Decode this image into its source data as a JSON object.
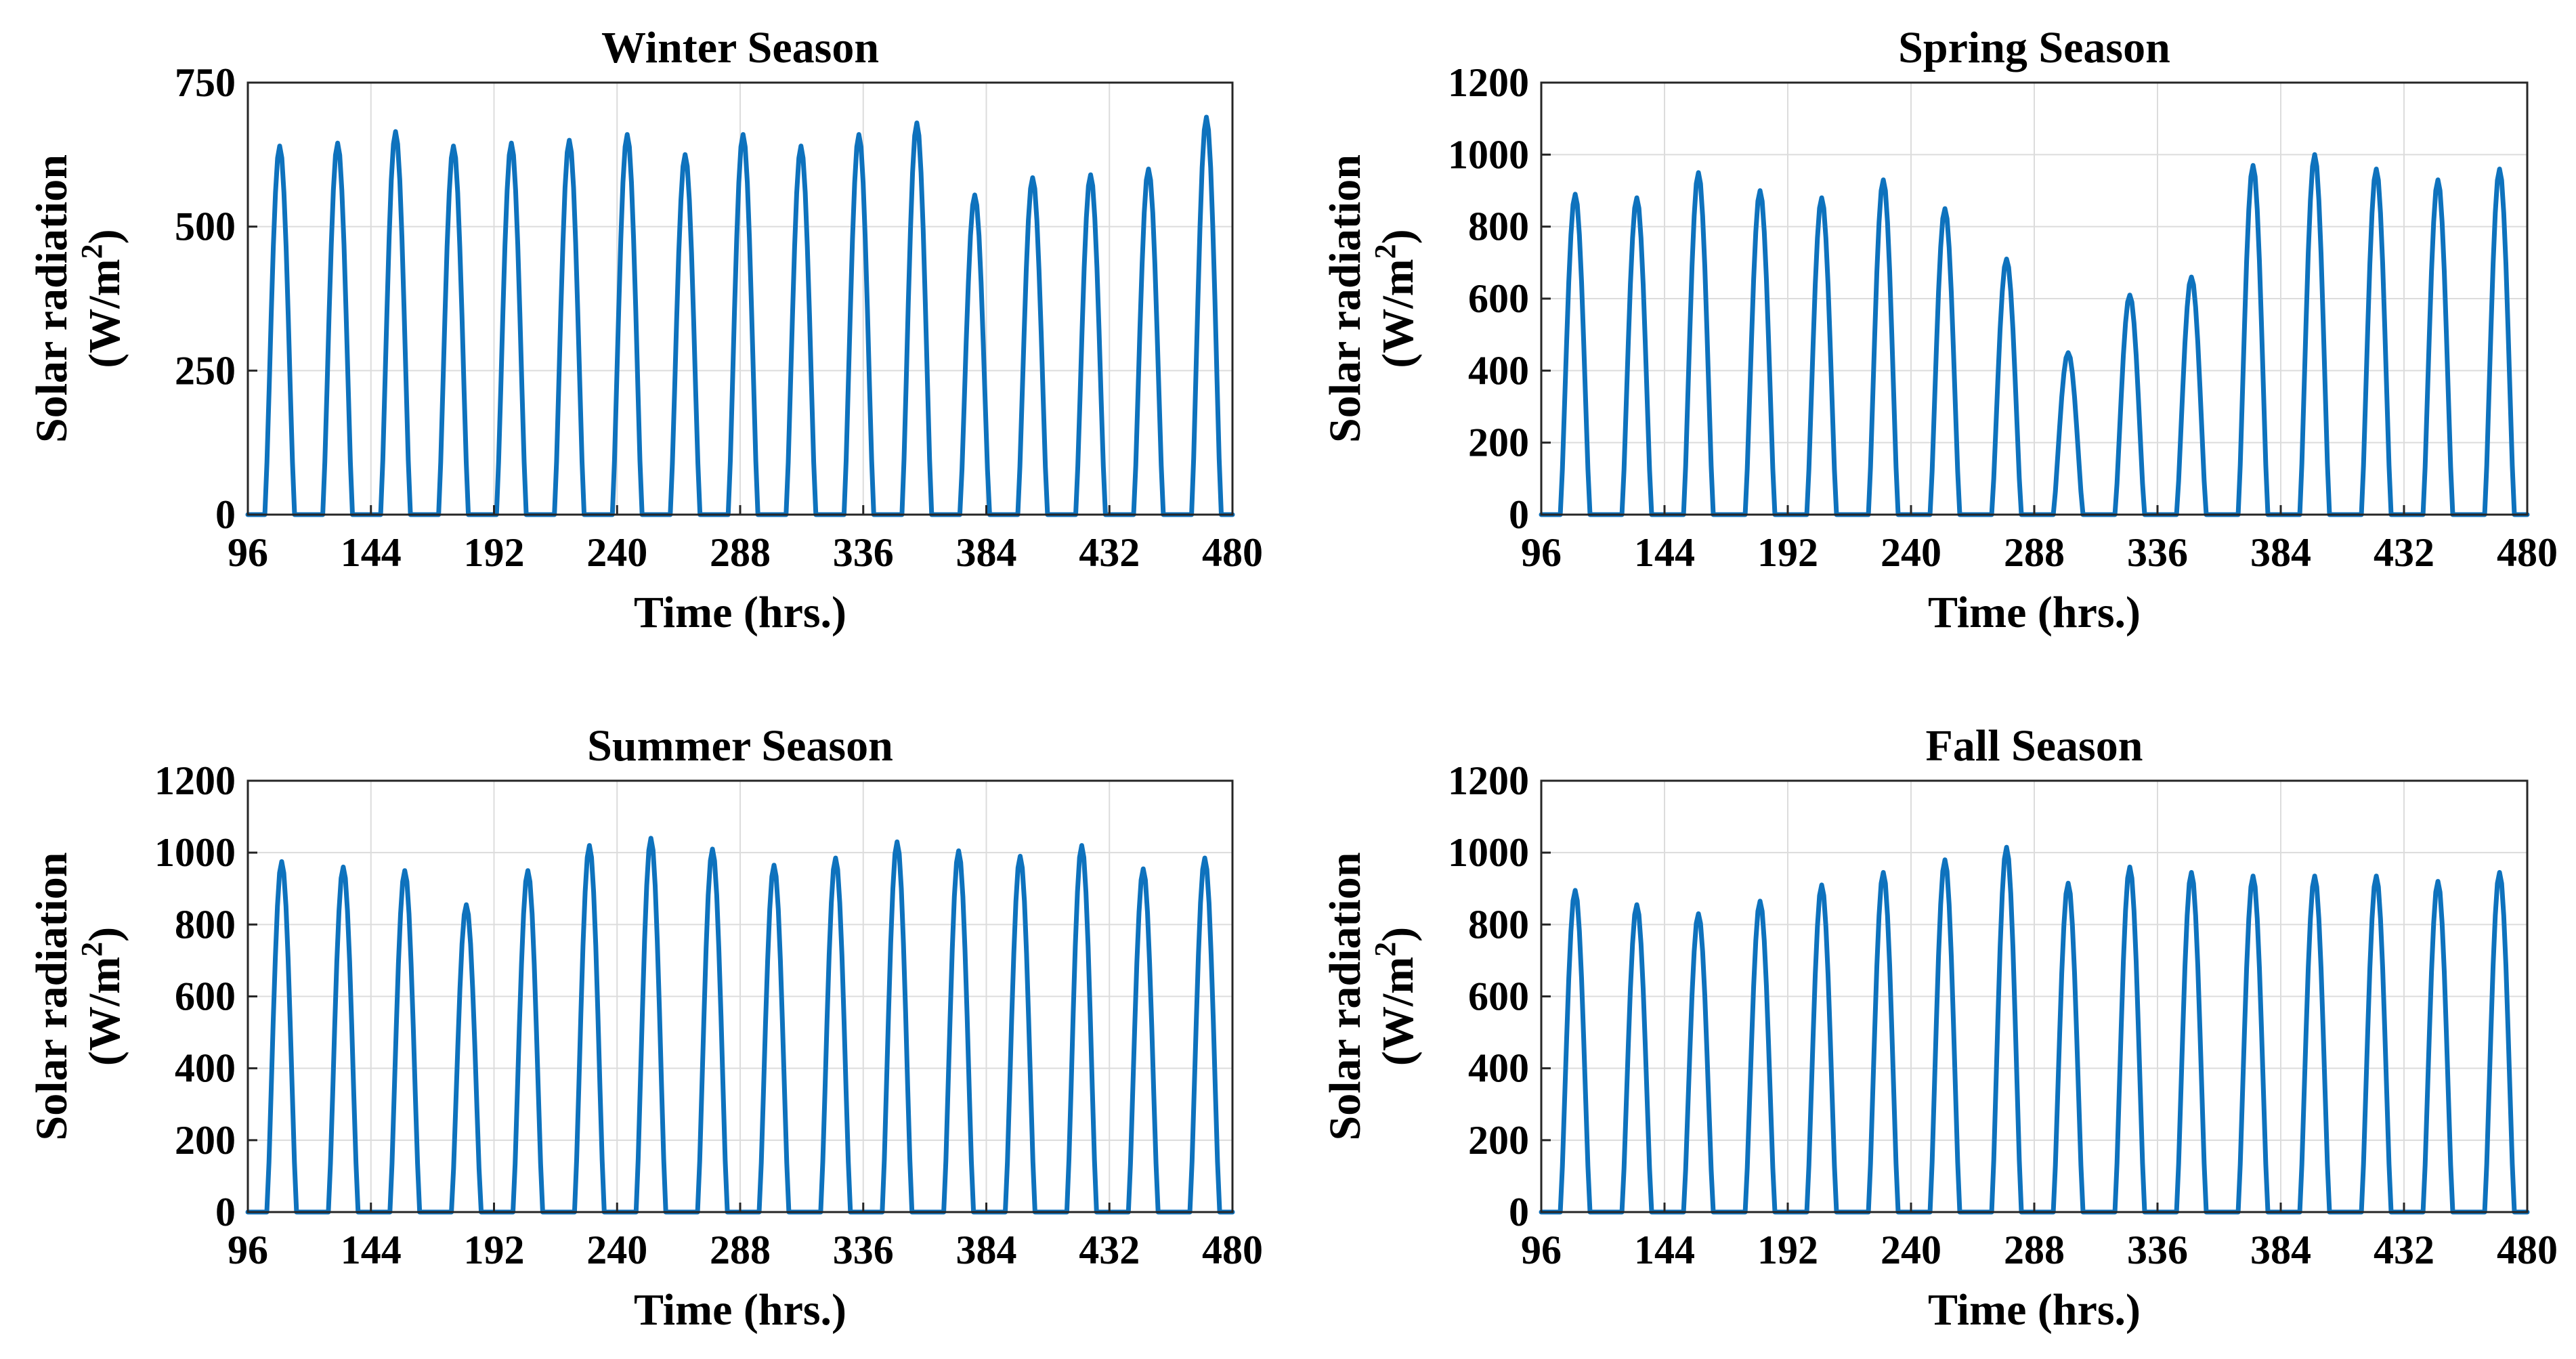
{
  "chart_data": [
    {
      "type": "line",
      "title": "Winter Season",
      "xlabel": "Time (hrs.)",
      "ylabel_line1": "Solar radiation",
      "ylabel_line2_prefix": "(W/m",
      "ylabel_sup": "2",
      "ylabel_line2_suffix": ")",
      "xlim": [
        96,
        480
      ],
      "ylim": [
        0,
        750
      ],
      "xticks": [
        96,
        144,
        192,
        240,
        288,
        336,
        384,
        432,
        480
      ],
      "yticks": [
        0,
        250,
        500,
        750
      ],
      "xtick_labels": [
        "96",
        "144",
        "192",
        "240",
        "288",
        "336",
        "384",
        "432",
        "480"
      ],
      "ytick_labels": [
        "0",
        "250",
        "500",
        "750"
      ],
      "grid": true,
      "series": [
        {
          "name": "Solar radiation",
          "color": "#0e72bd",
          "daily_peaks": [
            640,
            645,
            665,
            640,
            645,
            650,
            660,
            625,
            660,
            640,
            660,
            680,
            555,
            585,
            590,
            600,
            690
          ]
        }
      ]
    },
    {
      "type": "line",
      "title": "Spring Season",
      "xlabel": "Time (hrs.)",
      "ylabel_line1": "Solar radiation",
      "ylabel_line2_prefix": "(W/m",
      "ylabel_sup": "2",
      "ylabel_line2_suffix": ")",
      "xlim": [
        96,
        480
      ],
      "ylim": [
        0,
        1200
      ],
      "xticks": [
        96,
        144,
        192,
        240,
        288,
        336,
        384,
        432,
        480
      ],
      "yticks": [
        0,
        200,
        400,
        600,
        800,
        1000,
        1200
      ],
      "xtick_labels": [
        "96",
        "144",
        "192",
        "240",
        "288",
        "336",
        "384",
        "432",
        "480"
      ],
      "ytick_labels": [
        "0",
        "200",
        "400",
        "600",
        "800",
        "1000",
        "1200"
      ],
      "grid": true,
      "series": [
        {
          "name": "Solar radiation",
          "color": "#0e72bd",
          "daily_peaks": [
            890,
            880,
            950,
            900,
            880,
            930,
            850,
            710,
            450,
            610,
            660,
            970,
            1000,
            960,
            930,
            960
          ]
        }
      ]
    },
    {
      "type": "line",
      "title": "Summer Season",
      "xlabel": "Time (hrs.)",
      "ylabel_line1": "Solar radiation",
      "ylabel_line2_prefix": "(W/m",
      "ylabel_sup": "2",
      "ylabel_line2_suffix": ")",
      "xlim": [
        96,
        480
      ],
      "ylim": [
        0,
        1200
      ],
      "xticks": [
        96,
        144,
        192,
        240,
        288,
        336,
        384,
        432,
        480
      ],
      "yticks": [
        0,
        200,
        400,
        600,
        800,
        1000,
        1200
      ],
      "xtick_labels": [
        "96",
        "144",
        "192",
        "240",
        "288",
        "336",
        "384",
        "432",
        "480"
      ],
      "ytick_labels": [
        "0",
        "200",
        "400",
        "600",
        "800",
        "1000",
        "1200"
      ],
      "grid": true,
      "series": [
        {
          "name": "Solar radiation",
          "color": "#0e72bd",
          "daily_peaks": [
            975,
            960,
            950,
            855,
            950,
            1020,
            1040,
            1010,
            965,
            985,
            1030,
            1005,
            990,
            1020,
            955,
            985
          ]
        }
      ]
    },
    {
      "type": "line",
      "title": "Fall Season",
      "xlabel": "Time (hrs.)",
      "ylabel_line1": "Solar radiation",
      "ylabel_line2_prefix": "(W/m",
      "ylabel_sup": "2",
      "ylabel_line2_suffix": ")",
      "xlim": [
        96,
        480
      ],
      "ylim": [
        0,
        1200
      ],
      "xticks": [
        96,
        144,
        192,
        240,
        288,
        336,
        384,
        432,
        480
      ],
      "yticks": [
        0,
        200,
        400,
        600,
        800,
        1000,
        1200
      ],
      "xtick_labels": [
        "96",
        "144",
        "192",
        "240",
        "288",
        "336",
        "384",
        "432",
        "480"
      ],
      "ytick_labels": [
        "0",
        "200",
        "400",
        "600",
        "800",
        "1000",
        "1200"
      ],
      "grid": true,
      "series": [
        {
          "name": "Solar radiation",
          "color": "#0e72bd",
          "daily_peaks": [
            895,
            855,
            830,
            865,
            910,
            945,
            980,
            1015,
            915,
            960,
            945,
            935,
            935,
            935,
            920,
            945
          ]
        }
      ]
    }
  ]
}
